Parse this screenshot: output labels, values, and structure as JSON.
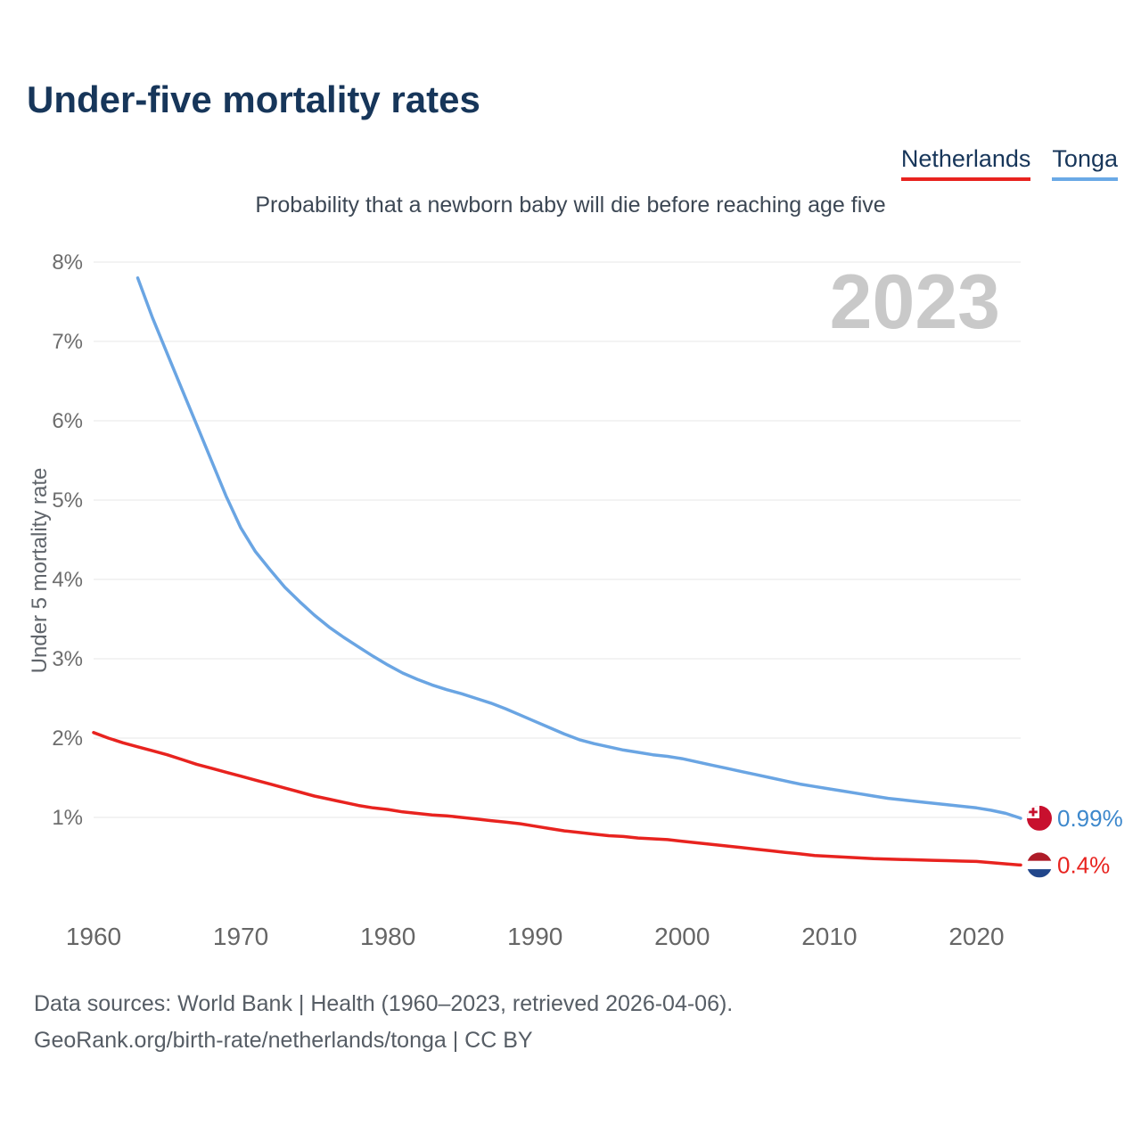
{
  "header": {
    "title": "Under-five mortality rates"
  },
  "legend": [
    {
      "label": "Netherlands",
      "color": "#e8231f"
    },
    {
      "label": "Tonga",
      "color": "#6aa9e6"
    }
  ],
  "footer": {
    "line1": "Data sources: World Bank | Health (1960–2023, retrieved 2026-04-06).",
    "line2": "GeoRank.org/birth-rate/netherlands/tonga | CC BY"
  },
  "chart_data": {
    "type": "line",
    "title": "Under-five mortality rates",
    "subtitle": "Probability that a newborn baby will die before reaching age five",
    "watermark": "2023",
    "ylabel": "Under 5 mortality rate",
    "xlabel": "",
    "grid": "horizontal",
    "xlim": [
      1960,
      2023
    ],
    "ylim": [
      0,
      8.3
    ],
    "x_ticks": [
      1960,
      1970,
      1980,
      1990,
      2000,
      2010,
      2020
    ],
    "y_ticks": [
      1,
      2,
      3,
      4,
      5,
      6,
      7,
      8
    ],
    "y_tick_suffix": "%",
    "series": [
      {
        "name": "Tonga",
        "color": "#6aa5e3",
        "end_label": "0.99%",
        "end_label_color": "#3d88cc",
        "flag": "tonga",
        "points": [
          [
            1963,
            7.8
          ],
          [
            1964,
            7.3
          ],
          [
            1965,
            6.85
          ],
          [
            1966,
            6.4
          ],
          [
            1967,
            5.95
          ],
          [
            1968,
            5.5
          ],
          [
            1969,
            5.05
          ],
          [
            1970,
            4.65
          ],
          [
            1971,
            4.35
          ],
          [
            1972,
            4.12
          ],
          [
            1973,
            3.9
          ],
          [
            1974,
            3.72
          ],
          [
            1975,
            3.55
          ],
          [
            1976,
            3.4
          ],
          [
            1977,
            3.27
          ],
          [
            1978,
            3.15
          ],
          [
            1979,
            3.03
          ],
          [
            1980,
            2.92
          ],
          [
            1981,
            2.82
          ],
          [
            1982,
            2.74
          ],
          [
            1983,
            2.67
          ],
          [
            1984,
            2.61
          ],
          [
            1985,
            2.56
          ],
          [
            1986,
            2.5
          ],
          [
            1987,
            2.44
          ],
          [
            1988,
            2.37
          ],
          [
            1989,
            2.29
          ],
          [
            1990,
            2.21
          ],
          [
            1991,
            2.13
          ],
          [
            1992,
            2.05
          ],
          [
            1993,
            1.98
          ],
          [
            1994,
            1.93
          ],
          [
            1995,
            1.89
          ],
          [
            1996,
            1.85
          ],
          [
            1997,
            1.82
          ],
          [
            1998,
            1.79
          ],
          [
            1999,
            1.77
          ],
          [
            2000,
            1.74
          ],
          [
            2001,
            1.7
          ],
          [
            2002,
            1.66
          ],
          [
            2003,
            1.62
          ],
          [
            2004,
            1.58
          ],
          [
            2005,
            1.54
          ],
          [
            2006,
            1.5
          ],
          [
            2007,
            1.46
          ],
          [
            2008,
            1.42
          ],
          [
            2009,
            1.39
          ],
          [
            2010,
            1.36
          ],
          [
            2011,
            1.33
          ],
          [
            2012,
            1.3
          ],
          [
            2013,
            1.27
          ],
          [
            2014,
            1.24
          ],
          [
            2015,
            1.22
          ],
          [
            2016,
            1.2
          ],
          [
            2017,
            1.18
          ],
          [
            2018,
            1.16
          ],
          [
            2019,
            1.14
          ],
          [
            2020,
            1.12
          ],
          [
            2021,
            1.09
          ],
          [
            2022,
            1.05
          ],
          [
            2023,
            0.99
          ]
        ]
      },
      {
        "name": "Netherlands",
        "color": "#e8231f",
        "end_label": "0.4%",
        "end_label_color": "#e8231f",
        "flag": "netherlands",
        "points": [
          [
            1960,
            2.07
          ],
          [
            1961,
            2.0
          ],
          [
            1962,
            1.94
          ],
          [
            1963,
            1.89
          ],
          [
            1964,
            1.84
          ],
          [
            1965,
            1.79
          ],
          [
            1966,
            1.73
          ],
          [
            1967,
            1.67
          ],
          [
            1968,
            1.62
          ],
          [
            1969,
            1.57
          ],
          [
            1970,
            1.52
          ],
          [
            1971,
            1.47
          ],
          [
            1972,
            1.42
          ],
          [
            1973,
            1.37
          ],
          [
            1974,
            1.32
          ],
          [
            1975,
            1.27
          ],
          [
            1976,
            1.23
          ],
          [
            1977,
            1.19
          ],
          [
            1978,
            1.15
          ],
          [
            1979,
            1.12
          ],
          [
            1980,
            1.1
          ],
          [
            1981,
            1.07
          ],
          [
            1982,
            1.05
          ],
          [
            1983,
            1.03
          ],
          [
            1984,
            1.02
          ],
          [
            1985,
            1.0
          ],
          [
            1986,
            0.98
          ],
          [
            1987,
            0.96
          ],
          [
            1988,
            0.94
          ],
          [
            1989,
            0.92
          ],
          [
            1990,
            0.89
          ],
          [
            1991,
            0.86
          ],
          [
            1992,
            0.83
          ],
          [
            1993,
            0.81
          ],
          [
            1994,
            0.79
          ],
          [
            1995,
            0.77
          ],
          [
            1996,
            0.76
          ],
          [
            1997,
            0.74
          ],
          [
            1998,
            0.73
          ],
          [
            1999,
            0.72
          ],
          [
            2000,
            0.7
          ],
          [
            2001,
            0.68
          ],
          [
            2002,
            0.66
          ],
          [
            2003,
            0.64
          ],
          [
            2004,
            0.62
          ],
          [
            2005,
            0.6
          ],
          [
            2006,
            0.58
          ],
          [
            2007,
            0.56
          ],
          [
            2008,
            0.54
          ],
          [
            2009,
            0.52
          ],
          [
            2010,
            0.51
          ],
          [
            2011,
            0.5
          ],
          [
            2012,
            0.49
          ],
          [
            2013,
            0.48
          ],
          [
            2014,
            0.475
          ],
          [
            2015,
            0.47
          ],
          [
            2016,
            0.465
          ],
          [
            2017,
            0.46
          ],
          [
            2018,
            0.455
          ],
          [
            2019,
            0.45
          ],
          [
            2020,
            0.445
          ],
          [
            2021,
            0.43
          ],
          [
            2022,
            0.415
          ],
          [
            2023,
            0.4
          ]
        ]
      }
    ],
    "flag_colors": {
      "tonga_red": "#c8102e",
      "nl_red": "#ae1c28",
      "nl_white": "#ffffff",
      "nl_blue": "#21468b"
    }
  }
}
